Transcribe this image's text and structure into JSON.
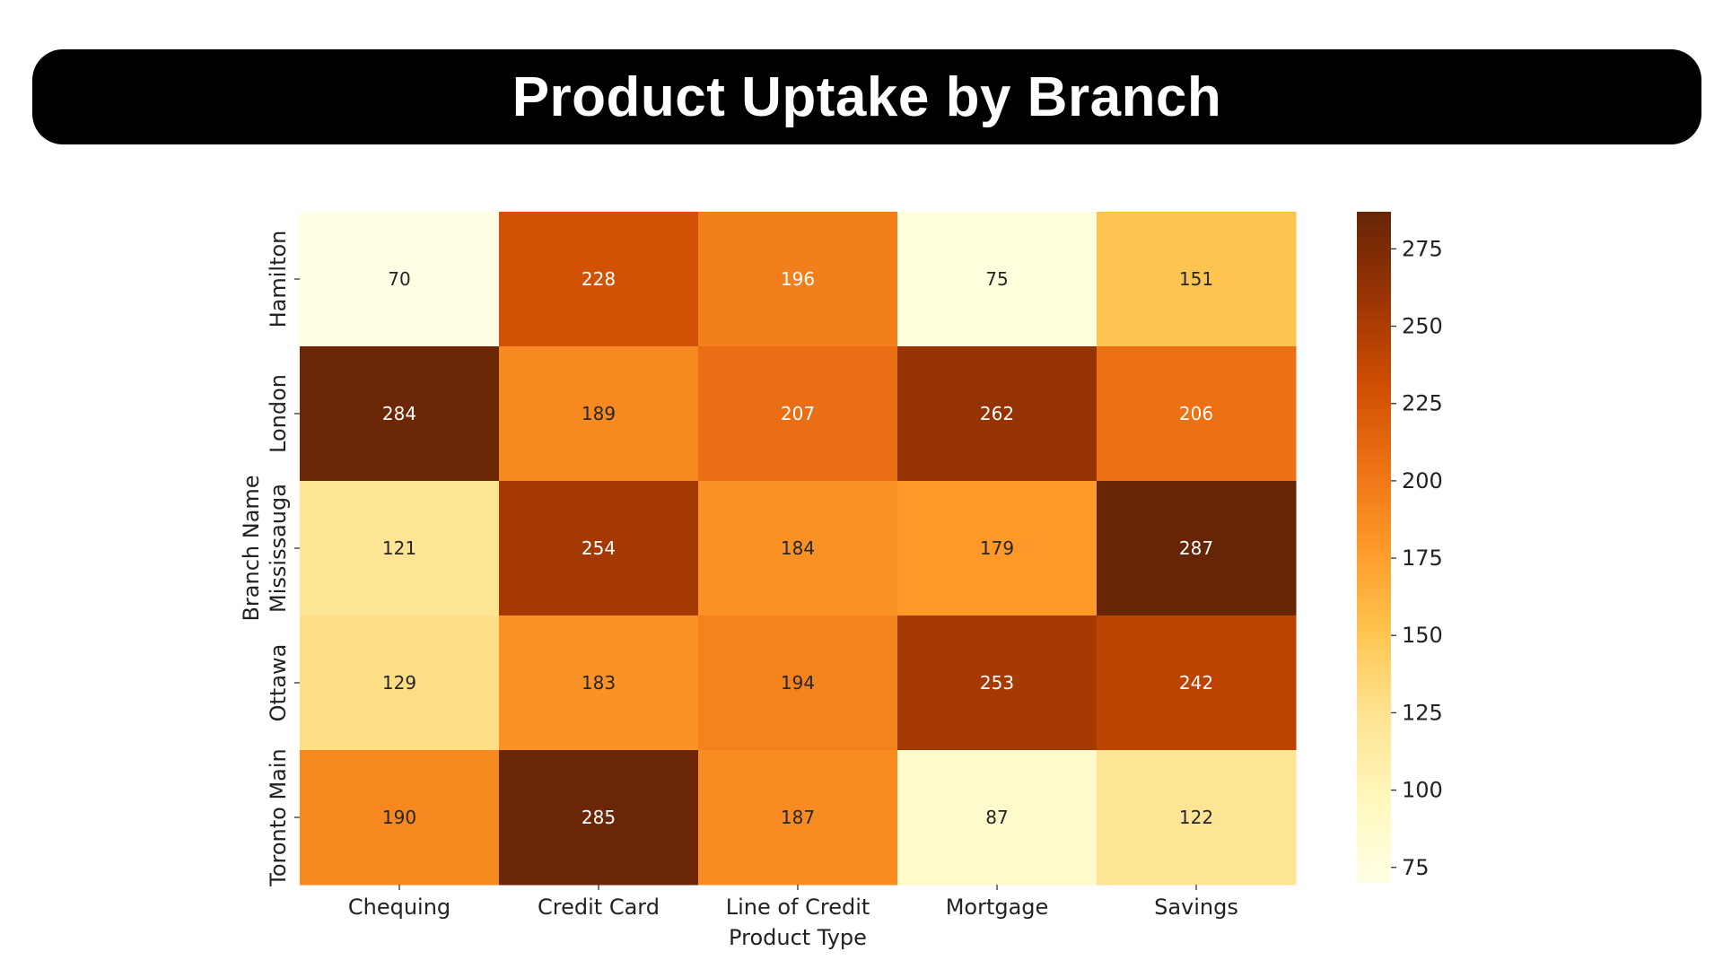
{
  "header": {
    "title": "Product Uptake by Branch"
  },
  "colors": {
    "title_bar": "#000000",
    "title_text": "#ffffff",
    "colormap": [
      "#ffffe5",
      "#fff7bc",
      "#fee391",
      "#fec44f",
      "#fe9929",
      "#ec7014",
      "#cc4c02",
      "#993404",
      "#662506"
    ]
  },
  "chart_data": {
    "type": "heatmap",
    "title": "Product Uptake by Branch",
    "xlabel": "Product Type",
    "ylabel": "Branch Name",
    "x_categories": [
      "Chequing",
      "Credit Card",
      "Line of Credit",
      "Mortgage",
      "Savings"
    ],
    "y_categories": [
      "Hamilton",
      "London",
      "Mississauga",
      "Ottawa",
      "Toronto Main"
    ],
    "values": [
      [
        70,
        228,
        196,
        75,
        151
      ],
      [
        284,
        189,
        207,
        262,
        206
      ],
      [
        121,
        254,
        184,
        179,
        287
      ],
      [
        129,
        183,
        194,
        253,
        242
      ],
      [
        190,
        285,
        187,
        87,
        122
      ]
    ],
    "color_range": [
      70,
      287
    ],
    "colorbar_ticks": [
      75,
      100,
      125,
      150,
      175,
      200,
      225,
      250,
      275
    ],
    "colormap_name": "YlOrBr",
    "annotations": true,
    "grid": false
  }
}
